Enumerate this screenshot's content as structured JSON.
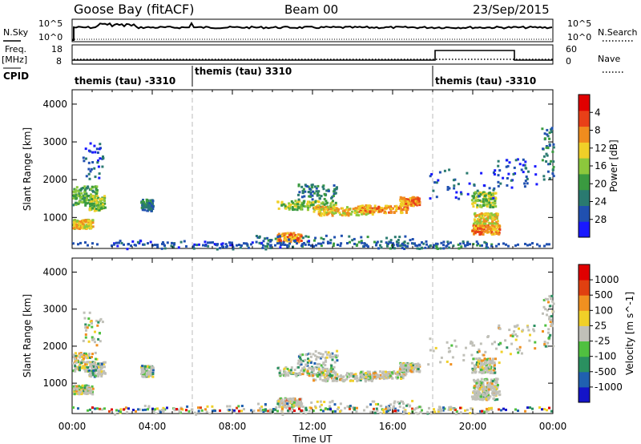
{
  "header": {
    "station": "Goose Bay (fitACF)",
    "beam": "Beam 00",
    "date": "23/Sep/2015"
  },
  "top_panels": {
    "nsky_label": "N.Sky",
    "nsearch_label": "N.Search",
    "freq_label_1": "Freq.",
    "freq_label_2": "[MHz]",
    "nave_label": "Nave",
    "cpid_label": "CPID",
    "nsky_ticks": [
      "10^5",
      "10^0"
    ],
    "nsearch_ticks": [
      "10^5",
      "10^0"
    ],
    "freq_ticks": [
      "18",
      "8"
    ],
    "nave_ticks": [
      "60",
      "0"
    ]
  },
  "cpid_segments": [
    {
      "label": "themis (tau) -3310",
      "start_hour": 0,
      "end_hour": 6
    },
    {
      "label": "themis (tau) 3310",
      "start_hour": 6,
      "end_hour": 18
    },
    {
      "label": "themis (tau) -3310",
      "start_hour": 18,
      "end_hour": 24
    }
  ],
  "chart_data": [
    {
      "type": "heatmap",
      "name": "power",
      "xlabel": "",
      "ylabel": "Slant Range [km]",
      "xlim": [
        0,
        24
      ],
      "ylim": [
        180,
        4380
      ],
      "y_ticks": [
        1000,
        2000,
        3000,
        4000
      ],
      "colorbar": {
        "label": "Power [dB]",
        "range": [
          0,
          32
        ],
        "ticks": [
          "4",
          "8",
          "12",
          "16",
          "20",
          "24",
          "28"
        ],
        "colors": [
          "#1919ff",
          "#2050b0",
          "#2a7a70",
          "#3a9a40",
          "#8cc83c",
          "#f0d028",
          "#f08c1e",
          "#e84018",
          "#e00000"
        ]
      }
    },
    {
      "type": "heatmap",
      "name": "velocity",
      "xlabel": "Time UT",
      "ylabel": "Slant Range [km]",
      "xlim": [
        0,
        24
      ],
      "ylim": [
        180,
        4380
      ],
      "y_ticks": [
        1000,
        2000,
        3000,
        4000
      ],
      "x_ticks": [
        "00:00",
        "04:00",
        "08:00",
        "12:00",
        "16:00",
        "20:00",
        "00:00"
      ],
      "colorbar": {
        "label": "Velocity [m s^-1]",
        "ticks": [
          "1000",
          "500",
          "100",
          "25",
          "-25",
          "-100",
          "-500",
          "-1000"
        ],
        "colors": [
          "#1414c8",
          "#2060b0",
          "#2a9060",
          "#50c040",
          "#c0c0b8",
          "#f0d028",
          "#f09020",
          "#e04010",
          "#e00000"
        ]
      }
    }
  ]
}
